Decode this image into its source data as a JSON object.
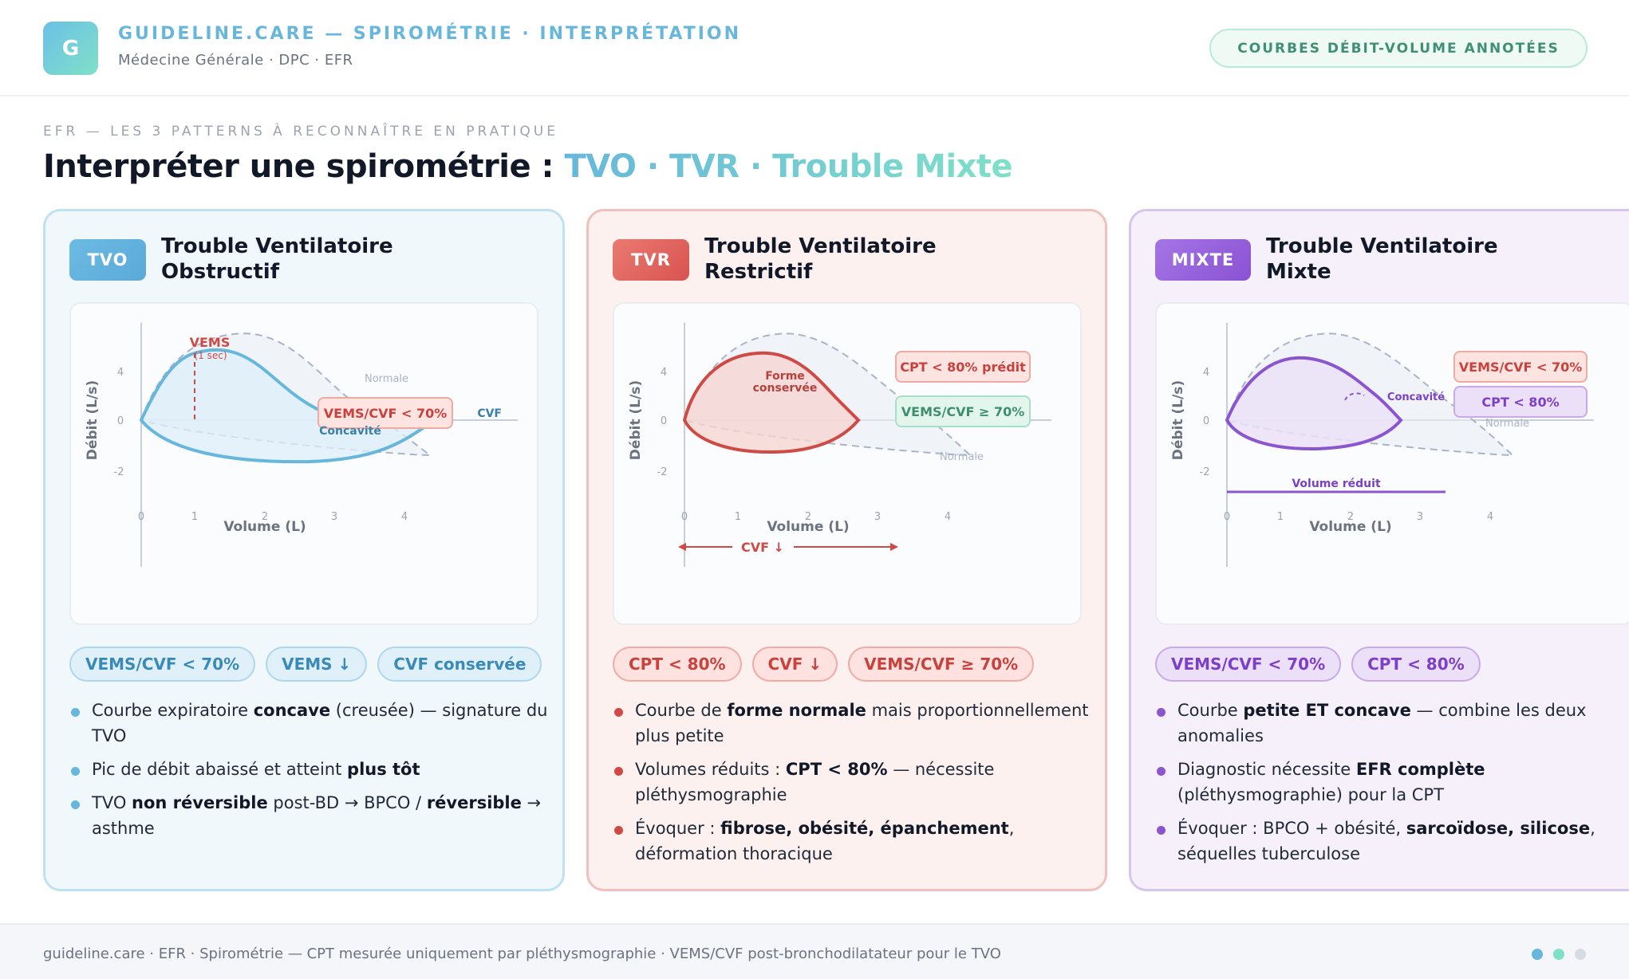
{
  "header": {
    "logo_letter": "G",
    "brand": "GUIDELINE.CARE — SPIROMÉTRIE · INTERPRÉTATION",
    "subtitle": "Médecine Générale · DPC · EFR",
    "pill": "COURBES DÉBIT-VOLUME ANNOTÉES"
  },
  "intro": {
    "kicker": "EFR — LES 3 PATTERNS À RECONNAÎTRE EN PRATIQUE",
    "title_prefix": "Interpréter une spirométrie : ",
    "title_accent": "TVO · TVR · Trouble Mixte"
  },
  "colors": {
    "tvo": "#67b7dc",
    "tvr": "#cf4a44",
    "mixte": "#8b55d0",
    "normal_curve": "#aab4c8",
    "accent_green": "#7fe0c8"
  },
  "cards": [
    {
      "badge": "TVO",
      "title_line1": "Trouble Ventilatoire",
      "title_line2": "Obstructif",
      "chart": {
        "x_axis_label": "Volume (L)",
        "y_axis_label": "Débit (L/s)",
        "x_ticks": [
          "0",
          "1",
          "2",
          "3",
          "4"
        ],
        "y_ticks": [
          "4",
          "0",
          "-2"
        ],
        "annotations": {
          "vems": "VEMS",
          "vems_sub": "(1 sec)",
          "ratio": "VEMS/CVF < 70%",
          "concavite": "Concavité",
          "normale": "Normale",
          "cvf": "CVF"
        }
      },
      "pills": [
        "VEMS/CVF < 70%",
        "VEMS ↓",
        "CVF conservée"
      ],
      "bullets": [
        {
          "parts": [
            {
              "t": "Courbe expiratoire "
            },
            {
              "t": "concave",
              "b": true
            },
            {
              "t": " (creusée) — signature du TVO"
            }
          ]
        },
        {
          "parts": [
            {
              "t": "Pic de débit abaissé et atteint "
            },
            {
              "t": "plus tôt",
              "b": true
            }
          ]
        },
        {
          "parts": [
            {
              "t": "TVO "
            },
            {
              "t": "non réversible",
              "b": true
            },
            {
              "t": " post-BD → BPCO / "
            },
            {
              "t": "réversible",
              "b": true
            },
            {
              "t": " → asthme"
            }
          ]
        }
      ]
    },
    {
      "badge": "TVR",
      "title_line1": "Trouble Ventilatoire",
      "title_line2": "Restrictif",
      "chart": {
        "x_axis_label": "Volume (L)",
        "y_axis_label": "Débit (L/s)",
        "x_ticks": [
          "0",
          "1",
          "2",
          "3",
          "4"
        ],
        "y_ticks": [
          "4",
          "0",
          "-2"
        ],
        "annotations": {
          "forme_line1": "Forme",
          "forme_line2": "conservée",
          "cpt": "CPT < 80% prédit",
          "ratio": "VEMS/CVF ≥ 70%",
          "normale": "Normale",
          "cvf": "CVF ↓"
        }
      },
      "pills": [
        "CPT < 80%",
        "CVF ↓",
        "VEMS/CVF ≥ 70%"
      ],
      "bullets": [
        {
          "parts": [
            {
              "t": "Courbe de "
            },
            {
              "t": "forme normale",
              "b": true
            },
            {
              "t": " mais proportionnellement plus petite"
            }
          ]
        },
        {
          "parts": [
            {
              "t": "Volumes réduits : "
            },
            {
              "t": "CPT < 80%",
              "b": true
            },
            {
              "t": " — nécessite pléthysmographie"
            }
          ]
        },
        {
          "parts": [
            {
              "t": "Évoquer : "
            },
            {
              "t": "fibrose, obésité, épanchement",
              "b": true
            },
            {
              "t": ", déformation thoracique"
            }
          ]
        }
      ]
    },
    {
      "badge": "MIXTE",
      "title_line1": "Trouble Ventilatoire",
      "title_line2": "Mixte",
      "chart": {
        "x_axis_label": "Volume (L)",
        "y_axis_label": "Débit (L/s)",
        "x_ticks": [
          "0",
          "1",
          "2",
          "3",
          "4"
        ],
        "y_ticks": [
          "4",
          "0",
          "-2"
        ],
        "annotations": {
          "ratio": "VEMS/CVF < 70%",
          "concavite": "Concavité",
          "cpt": "CPT < 80%",
          "normale": "Normale",
          "volume": "Volume réduit"
        }
      },
      "pills": [
        "VEMS/CVF < 70%",
        "CPT < 80%"
      ],
      "bullets": [
        {
          "parts": [
            {
              "t": "Courbe "
            },
            {
              "t": "petite ET concave",
              "b": true
            },
            {
              "t": " — combine les deux anomalies"
            }
          ]
        },
        {
          "parts": [
            {
              "t": "Diagnostic nécessite "
            },
            {
              "t": "EFR complète",
              "b": true
            },
            {
              "t": " (pléthysmographie) pour la CPT"
            }
          ]
        },
        {
          "parts": [
            {
              "t": "Évoquer : BPCO + obésité, "
            },
            {
              "t": "sarcoïdose, silicose",
              "b": true
            },
            {
              "t": ", séquelles tuberculose"
            }
          ]
        }
      ]
    }
  ],
  "footer": {
    "text": "guideline.care · EFR · Spirométrie — CPT mesurée uniquement par pléthysmographie · VEMS/CVF post-bronchodilatateur pour le TVO",
    "dots": [
      "#67b7dc",
      "#7fe0c8",
      "#d5dbe3"
    ]
  }
}
